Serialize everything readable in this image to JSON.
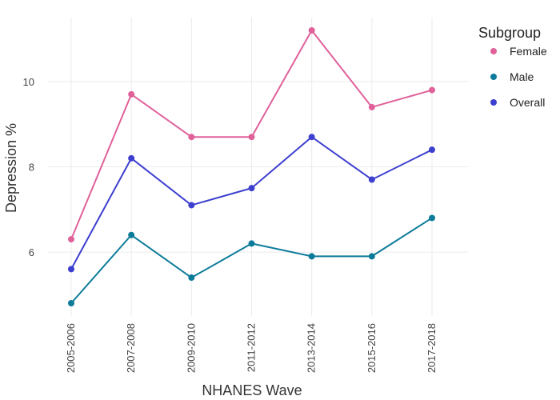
{
  "chart_data": {
    "type": "line",
    "title": "",
    "xlabel": "NHANES Wave",
    "ylabel": "Depression %",
    "categories": [
      "2005-2006",
      "2007-2008",
      "2009-2010",
      "2011-2012",
      "2013-2014",
      "2015-2016",
      "2017-2018"
    ],
    "ylim": [
      4.5,
      11.5
    ],
    "yticks": [
      6,
      8,
      10
    ],
    "grid": true,
    "legend": {
      "title": "Subgroup",
      "placement": "right"
    },
    "series": [
      {
        "name": "Female",
        "color": "#e0619a",
        "values": [
          6.3,
          9.7,
          8.7,
          8.7,
          11.2,
          9.4,
          9.8
        ]
      },
      {
        "name": "Male",
        "color": "#0c7b9a",
        "values": [
          4.8,
          6.4,
          5.4,
          6.2,
          5.9,
          5.9,
          6.8
        ]
      },
      {
        "name": "Overall",
        "color": "#3d3fcf",
        "values": [
          5.6,
          8.2,
          7.1,
          7.5,
          8.7,
          7.7,
          8.4
        ]
      }
    ]
  }
}
